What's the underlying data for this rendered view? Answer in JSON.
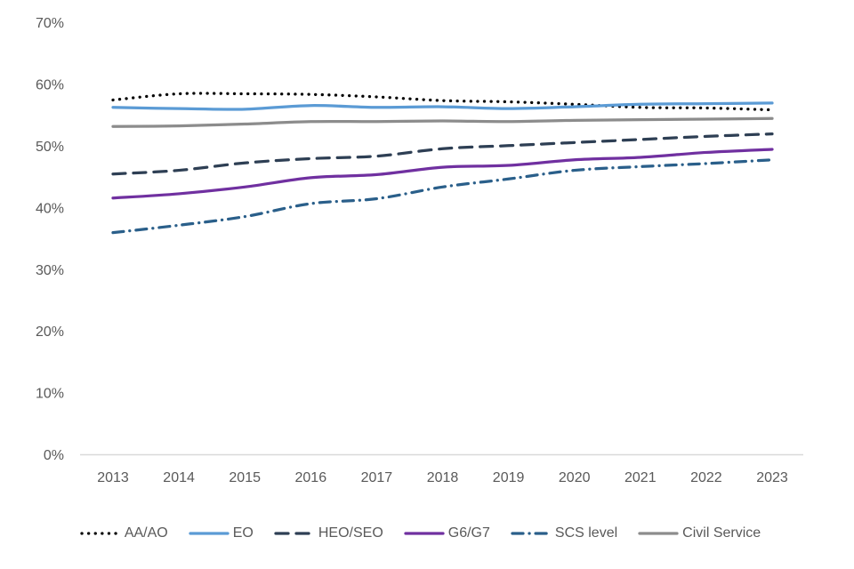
{
  "chart_data": {
    "type": "line",
    "categories": [
      "2013",
      "2014",
      "2015",
      "2016",
      "2017",
      "2018",
      "2019",
      "2020",
      "2021",
      "2022",
      "2023"
    ],
    "series": [
      {
        "name": "AA/AO",
        "color": "#000000",
        "style": "dotted",
        "values": [
          57.5,
          58.5,
          58.5,
          58.4,
          58.0,
          57.4,
          57.2,
          56.8,
          56.3,
          56.2,
          55.9
        ]
      },
      {
        "name": "EO",
        "color": "#5B9BD5",
        "style": "solid",
        "values": [
          56.3,
          56.1,
          56.0,
          56.6,
          56.3,
          56.4,
          56.1,
          56.4,
          56.8,
          56.9,
          57.0
        ]
      },
      {
        "name": "HEO/SEO",
        "color": "#2E3F54",
        "style": "dashed",
        "values": [
          45.5,
          46.1,
          47.3,
          48.0,
          48.4,
          49.6,
          50.1,
          50.6,
          51.1,
          51.6,
          52.0
        ]
      },
      {
        "name": "G6/G7",
        "color": "#7030A0",
        "style": "solid",
        "values": [
          41.6,
          42.3,
          43.4,
          44.9,
          45.4,
          46.6,
          46.9,
          47.8,
          48.2,
          49.0,
          49.5
        ]
      },
      {
        "name": "SCS level",
        "color": "#2A5F8A",
        "style": "dashdot",
        "values": [
          36.0,
          37.2,
          38.6,
          40.7,
          41.5,
          43.4,
          44.7,
          46.1,
          46.7,
          47.2,
          47.8
        ]
      },
      {
        "name": "Civil Service",
        "color": "#8C8C8C",
        "style": "solid",
        "values": [
          53.2,
          53.3,
          53.6,
          54.0,
          54.0,
          54.1,
          54.0,
          54.2,
          54.3,
          54.4,
          54.5
        ]
      }
    ],
    "title": "",
    "xlabel": "",
    "ylabel": "",
    "ylim": [
      0,
      70
    ],
    "ytick_step": 10,
    "ytick_suffix": "%",
    "grid": false,
    "legend_position": "bottom",
    "axis_text_color": "#595959",
    "axis_line_color": "#D9D9D9"
  }
}
